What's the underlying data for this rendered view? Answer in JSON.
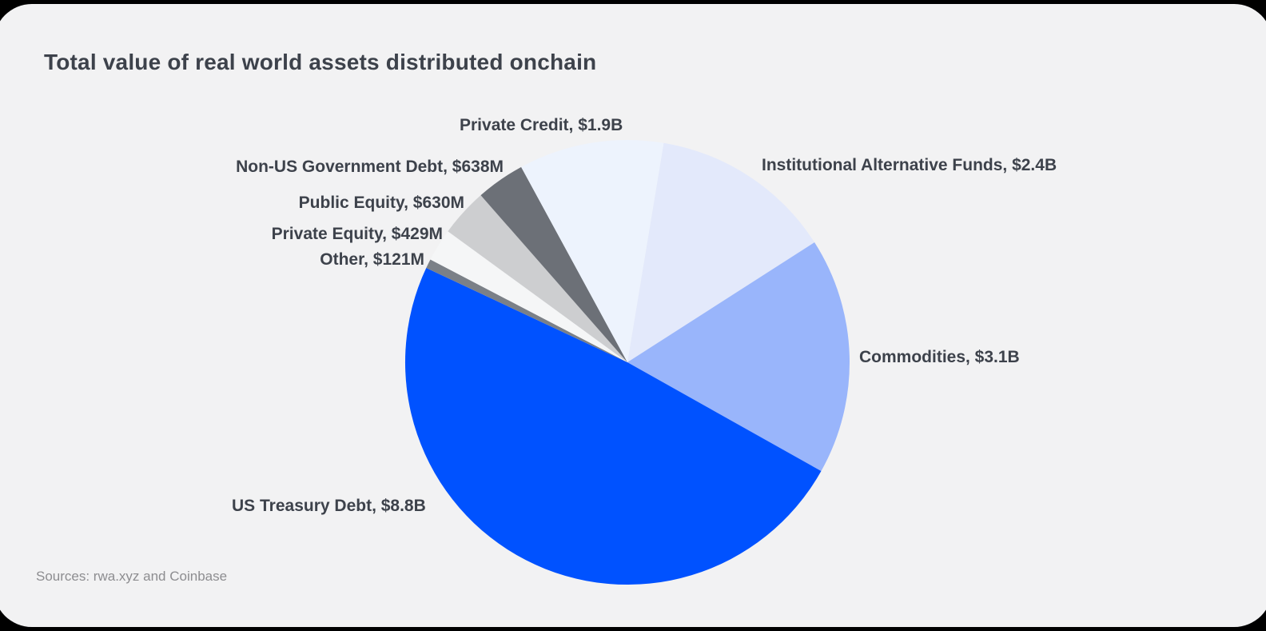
{
  "title": "Total value of real world assets distributed onchain",
  "source": "Sources: rwa.xyz and Coinbase",
  "colors": {
    "page_background": "#000000",
    "card_background": "#f2f2f3",
    "title_text": "#3d424b",
    "label_text": "#3d424b",
    "source_text": "#8d8d90",
    "accent_blue": "#0052ff"
  },
  "chart_data": {
    "type": "pie",
    "title": "Total value of real world assets distributed onchain",
    "units": "USD",
    "total_billions": 18.018,
    "direction": "clockwise",
    "start_angle_deg": 9.4,
    "legend_position": "labels-around-pie",
    "slices": [
      {
        "label": "Institutional Alternative Funds",
        "display_value": "$2.4B",
        "value_billions": 2.4,
        "color": "#e3e9fb"
      },
      {
        "label": "Commodities",
        "display_value": "$3.1B",
        "value_billions": 3.1,
        "color": "#99b5fb"
      },
      {
        "label": "US Treasury Debt",
        "display_value": "$8.8B",
        "value_billions": 8.8,
        "color": "#0052ff"
      },
      {
        "label": "Other",
        "display_value": "$121M",
        "value_billions": 0.121,
        "color": "#7b8087"
      },
      {
        "label": "Private Equity",
        "display_value": "$429M",
        "value_billions": 0.429,
        "color": "#f5f6f7"
      },
      {
        "label": "Public Equity",
        "display_value": "$630M",
        "value_billions": 0.63,
        "color": "#cdced0"
      },
      {
        "label": "Non-US Government Debt",
        "display_value": "$638M",
        "value_billions": 0.638,
        "color": "#6c7077"
      },
      {
        "label": "Private Credit",
        "display_value": "$1.9B",
        "value_billions": 1.9,
        "color": "#edf3fd"
      }
    ]
  }
}
